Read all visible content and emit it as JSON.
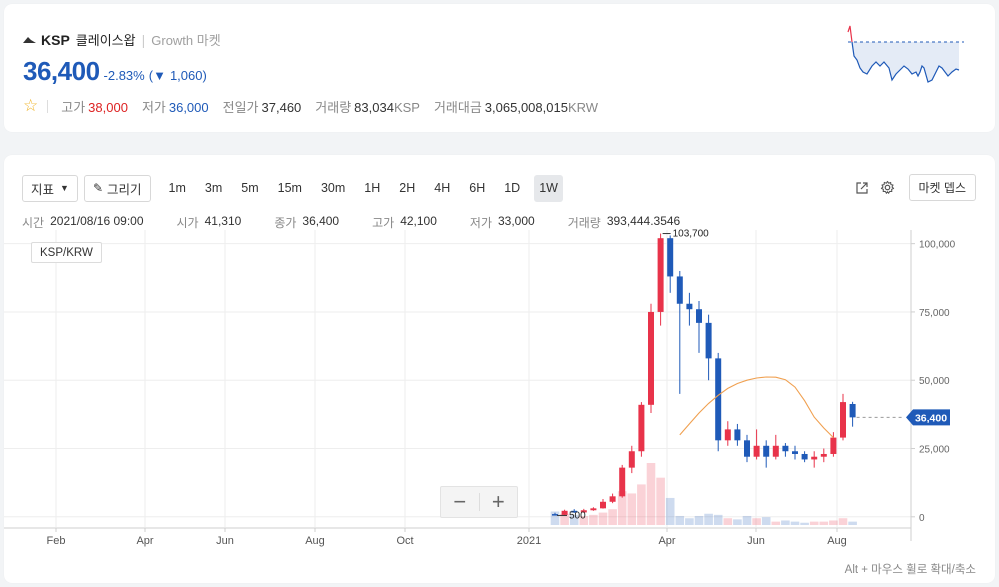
{
  "header": {
    "symbol": "KSP",
    "name_kr": "클레이스왑",
    "market": "Growth 마켓",
    "price": "36,400",
    "change_pct": "-2.83%",
    "change_arrow": "▼",
    "change_abs": "1,060",
    "stats": [
      {
        "label": "고가",
        "value": "38,000",
        "tone": "up"
      },
      {
        "label": "저가",
        "value": "36,000",
        "tone": "down"
      },
      {
        "label": "전일가",
        "value": "37,460",
        "tone": "normal"
      },
      {
        "label": "거래량",
        "value": "83,034",
        "unit": "KSP",
        "tone": "normal"
      },
      {
        "label": "거래대금",
        "value": "3,065,008,015",
        "unit": "KRW",
        "tone": "normal"
      }
    ]
  },
  "toolbar": {
    "indicator_label": "지표",
    "draw_label": "그리기",
    "timeframes": [
      "1m",
      "3m",
      "5m",
      "15m",
      "30m",
      "1H",
      "2H",
      "4H",
      "6H",
      "1D",
      "1W"
    ],
    "active_timeframe": "1W",
    "depth_label": "마켓 뎁스"
  },
  "ohlc": {
    "time_label": "시간",
    "time": "2021/08/16 09:00",
    "open_label": "시가",
    "open": "41,310",
    "close_label": "종가",
    "close": "36,400",
    "high_label": "고가",
    "high": "42,100",
    "low_label": "저가",
    "low": "33,000",
    "volume_label": "거래량",
    "volume": "393,444.3546"
  },
  "pair_label": "KSP/KRW",
  "hint": "Alt + 마우스 휠로 확대/축소",
  "colors": {
    "up": "#e8334a",
    "down": "#1f5ab8",
    "ma": "#f0a050"
  },
  "chart_data": {
    "type": "candlestick",
    "x_tick_labels": [
      "Feb",
      "Apr",
      "Jun",
      "Aug",
      "Oct",
      "2021",
      "Apr",
      "Jun",
      "Aug"
    ],
    "y_ticks": [
      0,
      25000,
      50000,
      75000,
      100000
    ],
    "y_tick_labels": [
      "0",
      "25,000",
      "50,000",
      "75,000",
      "100,000"
    ],
    "ylim": [
      -3000,
      105000
    ],
    "max_marker": "103,700",
    "min_marker": "500",
    "last_price_label": "36,400",
    "last_price": 36400,
    "candles": [
      {
        "o": 1000,
        "c": 700,
        "h": 1500,
        "l": 500
      },
      {
        "o": 700,
        "c": 2200,
        "h": 2600,
        "l": 600
      },
      {
        "o": 2200,
        "c": 1600,
        "h": 2800,
        "l": 1400
      },
      {
        "o": 1600,
        "c": 2400,
        "h": 2900,
        "l": 1500
      },
      {
        "o": 2400,
        "c": 3100,
        "h": 3500,
        "l": 2200
      },
      {
        "o": 3100,
        "c": 5500,
        "h": 6500,
        "l": 3000
      },
      {
        "o": 5500,
        "c": 7500,
        "h": 8500,
        "l": 5000
      },
      {
        "o": 7500,
        "c": 18000,
        "h": 19000,
        "l": 7000
      },
      {
        "o": 18000,
        "c": 24000,
        "h": 26000,
        "l": 16000
      },
      {
        "o": 24000,
        "c": 41000,
        "h": 42000,
        "l": 22000
      },
      {
        "o": 41000,
        "c": 75000,
        "h": 78000,
        "l": 38000
      },
      {
        "o": 75000,
        "c": 102000,
        "h": 103700,
        "l": 70000
      },
      {
        "o": 102000,
        "c": 88000,
        "h": 103000,
        "l": 82000
      },
      {
        "o": 88000,
        "c": 78000,
        "h": 90000,
        "l": 45000
      },
      {
        "o": 78000,
        "c": 76000,
        "h": 82000,
        "l": 70000
      },
      {
        "o": 76000,
        "c": 71000,
        "h": 79000,
        "l": 60000
      },
      {
        "o": 71000,
        "c": 58000,
        "h": 74000,
        "l": 50000
      },
      {
        "o": 58000,
        "c": 28000,
        "h": 60000,
        "l": 24000
      },
      {
        "o": 28000,
        "c": 32000,
        "h": 35000,
        "l": 26000
      },
      {
        "o": 32000,
        "c": 28000,
        "h": 34000,
        "l": 26000
      },
      {
        "o": 28000,
        "c": 22000,
        "h": 30000,
        "l": 20000
      },
      {
        "o": 22000,
        "c": 26000,
        "h": 32000,
        "l": 21000
      },
      {
        "o": 26000,
        "c": 22000,
        "h": 28000,
        "l": 18000
      },
      {
        "o": 22000,
        "c": 26000,
        "h": 30000,
        "l": 21000
      },
      {
        "o": 26000,
        "c": 24000,
        "h": 27000,
        "l": 22000
      },
      {
        "o": 24000,
        "c": 23000,
        "h": 26000,
        "l": 21000
      },
      {
        "o": 23000,
        "c": 21000,
        "h": 24000,
        "l": 20000
      },
      {
        "o": 21000,
        "c": 22000,
        "h": 24000,
        "l": 18000
      },
      {
        "o": 22000,
        "c": 23000,
        "h": 25000,
        "l": 20000
      },
      {
        "o": 23000,
        "c": 29000,
        "h": 31000,
        "l": 22000
      },
      {
        "o": 29000,
        "c": 42000,
        "h": 45000,
        "l": 28000
      },
      {
        "o": 41300,
        "c": 36400,
        "h": 42100,
        "l": 33000
      }
    ],
    "volume_scale_note": "relative",
    "volumes": [
      12,
      10,
      9,
      8,
      9,
      11,
      14,
      30,
      28,
      36,
      55,
      42,
      24,
      8,
      6,
      8,
      10,
      9,
      6,
      5,
      8,
      6,
      7,
      3,
      4,
      3,
      2,
      3,
      3,
      4,
      6,
      3
    ],
    "moving_average": [
      30000,
      34000,
      38000,
      41500,
      44500,
      47000,
      48800,
      50000,
      50800,
      51200,
      51100,
      50200,
      47500,
      42500,
      36500,
      32500,
      29000
    ]
  }
}
